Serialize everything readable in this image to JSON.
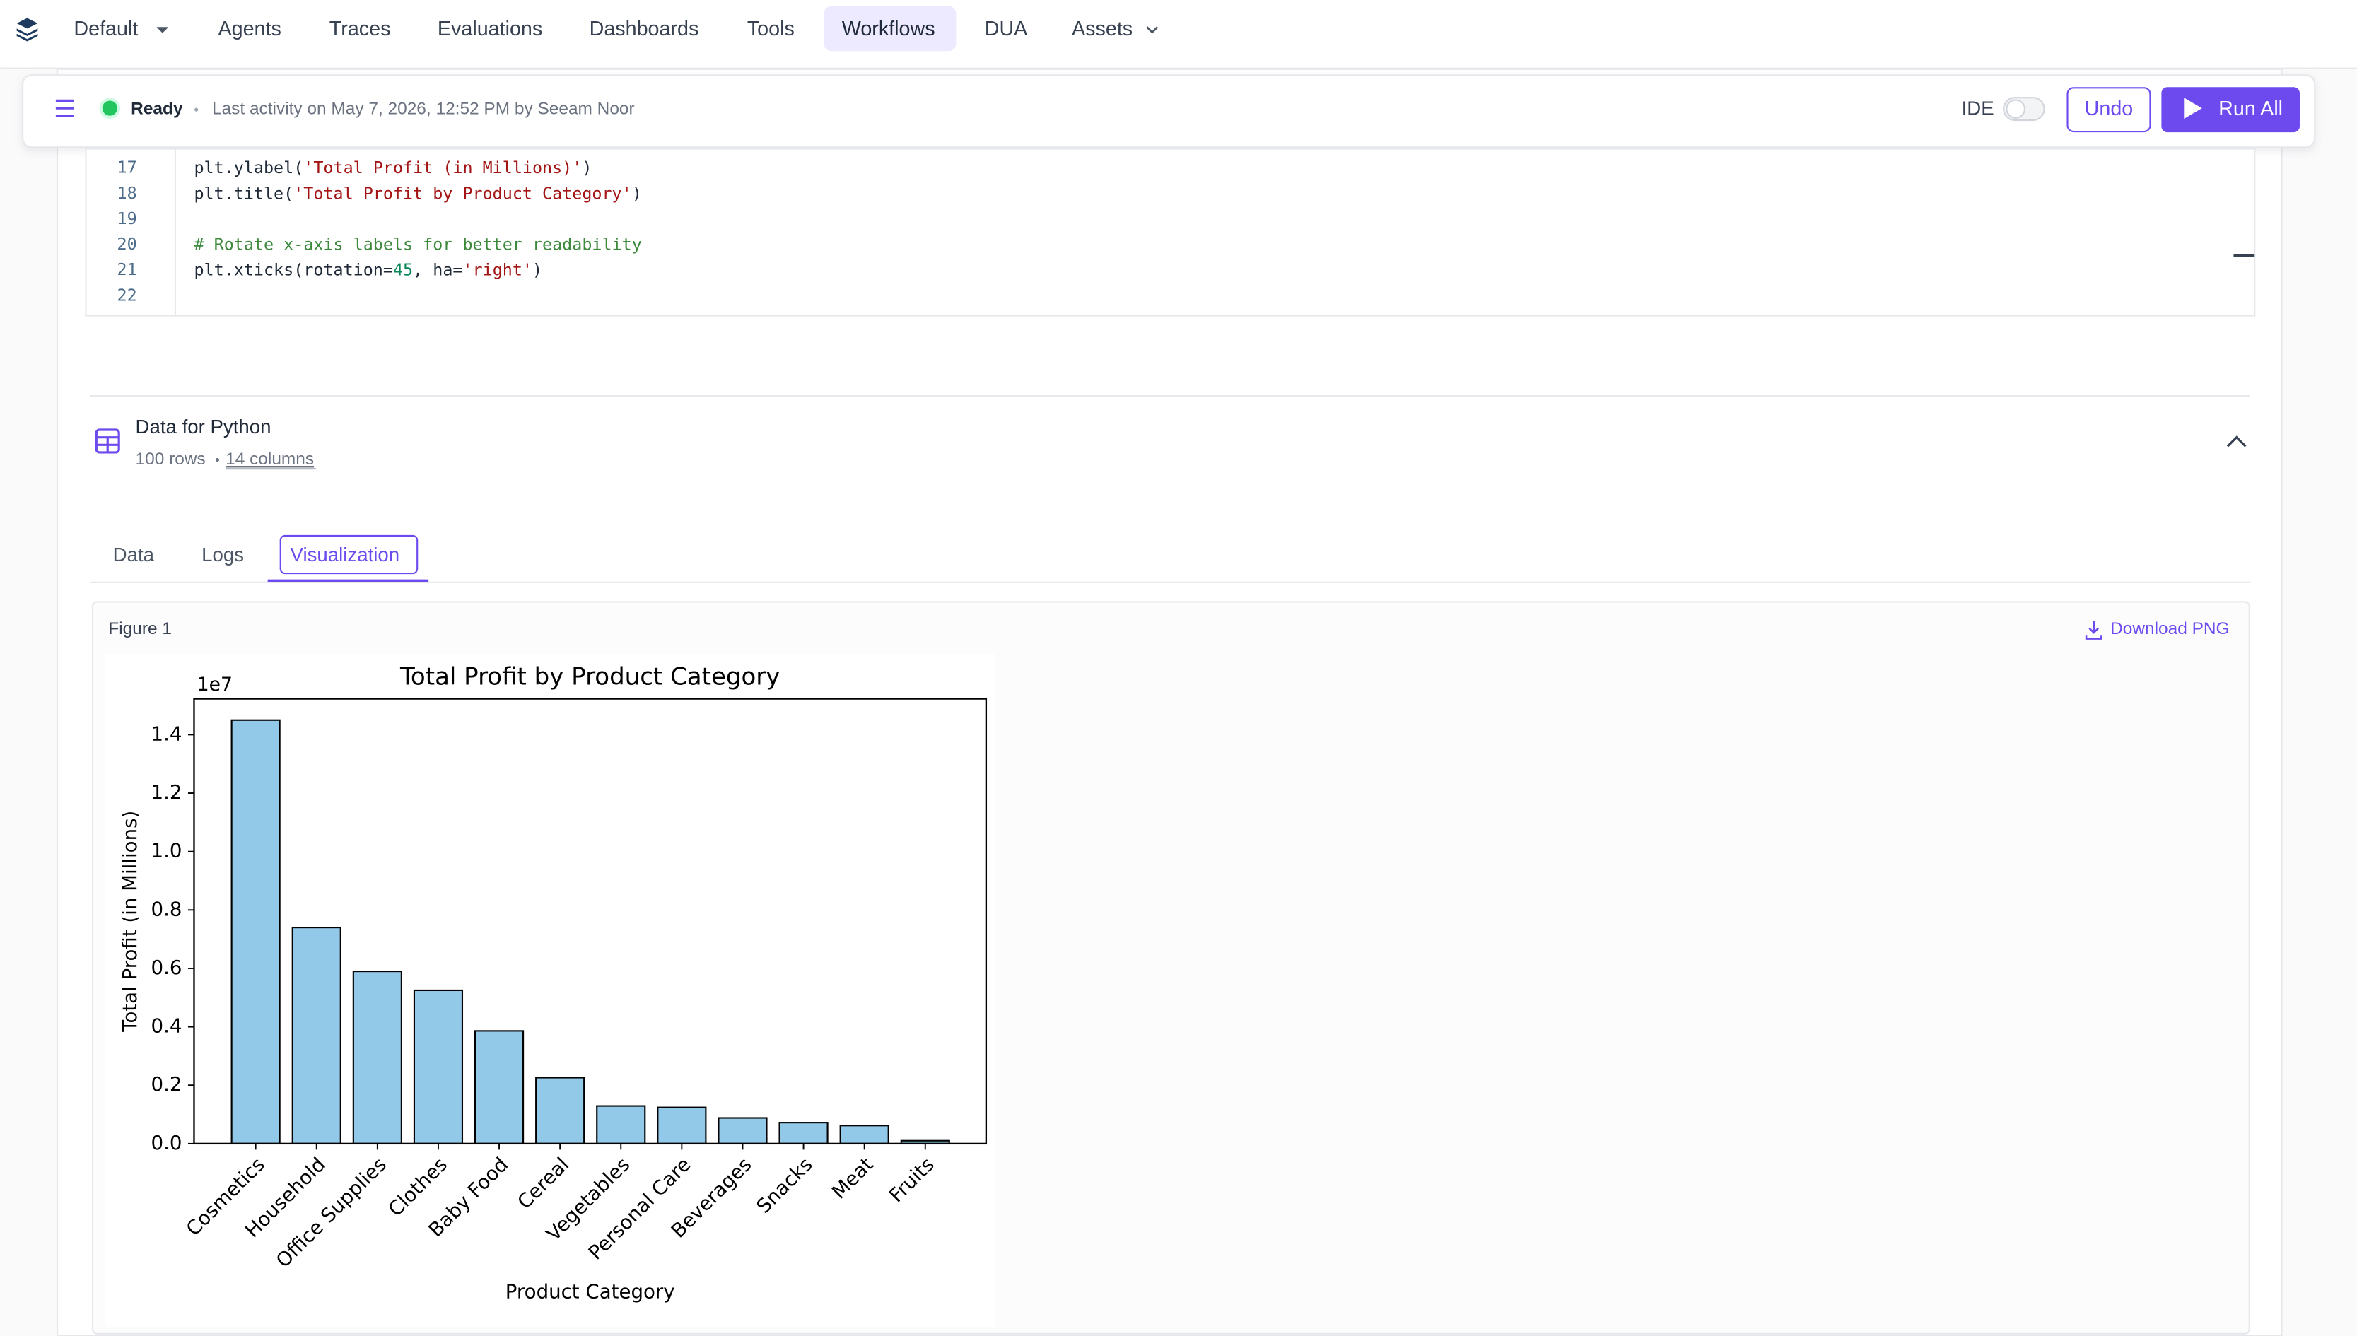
{
  "nav": {
    "workspace": "Default",
    "items": [
      "Agents",
      "Traces",
      "Evaluations",
      "Dashboards",
      "Tools",
      "Workflows",
      "DUA",
      "Assets"
    ],
    "active": "Workflows"
  },
  "status": {
    "state": "Ready",
    "activity": "Last activity on May 7, 2026, 12:52 PM by Seeam Noor",
    "ide_label": "IDE",
    "undo": "Undo",
    "run_all": "Run All"
  },
  "code": {
    "lines": [
      {
        "number": 17,
        "tokens": [
          "plt.ylabel(",
          "'Total Profit (in Millions)'",
          ")"
        ]
      },
      {
        "number": 18,
        "tokens": [
          "plt.title(",
          "'Total Profit by Product Category'",
          ")"
        ]
      },
      {
        "number": 19,
        "tokens": []
      },
      {
        "number": 20,
        "tokens": [
          "# Rotate x-axis labels for better readability"
        ]
      },
      {
        "number": 21,
        "tokens": [
          "plt.xticks(rotation=",
          "45",
          ", ha=",
          "'right'",
          ")"
        ]
      },
      {
        "number": 22,
        "tokens": []
      }
    ]
  },
  "dataset": {
    "name": "Data for Python",
    "rows": "100 rows",
    "columns": "14 columns"
  },
  "tabs": {
    "items": [
      "Data",
      "Logs",
      "Visualization"
    ],
    "active": "Visualization"
  },
  "figure": {
    "label": "Figure 1",
    "download": "Download PNG"
  },
  "chart_data": {
    "type": "bar",
    "title": "Total Profit by Product Category",
    "x_label": "Product Category",
    "y_label": "Total Profit (in Millions)",
    "offset_label": "1e7",
    "categories": [
      "Cosmetics",
      "Household",
      "Office Supplies",
      "Clothes",
      "Baby Food",
      "Cereal",
      "Vegetables",
      "Personal Care",
      "Beverages",
      "Snacks",
      "Meat",
      "Fruits"
    ],
    "values": [
      1.45,
      0.74,
      0.59,
      0.525,
      0.386,
      0.226,
      0.129,
      0.124,
      0.088,
      0.072,
      0.062,
      0.01
    ],
    "color": "#93c9e8",
    "edgecolor": "#000000",
    "ylim": [
      0,
      1.523
    ],
    "yticks": [
      {
        "value": 0,
        "label": "0.0"
      },
      0.2,
      0.4,
      0.6,
      0.8,
      {
        "value": 1,
        "label": "1.0"
      },
      1.2,
      1.4
    ]
  }
}
